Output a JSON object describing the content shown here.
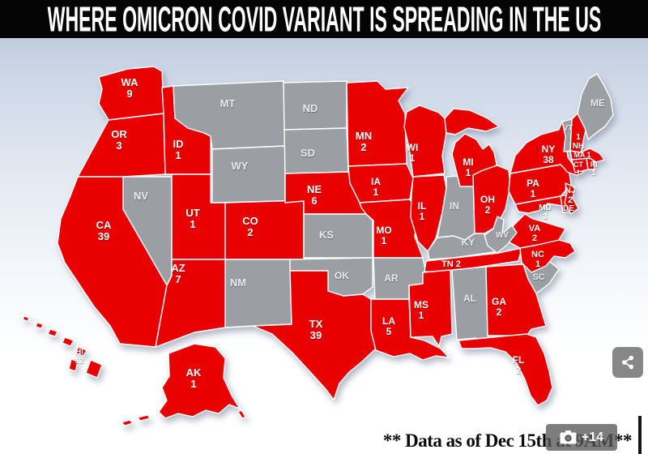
{
  "header": {
    "title": "WHERE OMICRON COVID VARIANT IS SPREADING IN THE US"
  },
  "footer": {
    "note": "** Data as of Dec 15th at 9AM**"
  },
  "overlays": {
    "gallery_count": "+14",
    "camera_icon": "camera-icon",
    "share_icon": "share-icon"
  },
  "map": {
    "colors": {
      "infected": "#e90000",
      "no_cases": "#9b9fa4",
      "border": "#ffffff",
      "label_infected": "#ffffff",
      "label_no_cases": "#e8eaec"
    },
    "states": [
      {
        "abbr": "WA",
        "cases": "9",
        "infected": true
      },
      {
        "abbr": "OR",
        "cases": "3",
        "infected": true
      },
      {
        "abbr": "CA",
        "cases": "39",
        "infected": true
      },
      {
        "abbr": "ID",
        "cases": "1",
        "infected": true
      },
      {
        "abbr": "NV",
        "cases": null,
        "infected": false
      },
      {
        "abbr": "UT",
        "cases": "1",
        "infected": true
      },
      {
        "abbr": "AZ",
        "cases": "7",
        "infected": true
      },
      {
        "abbr": "MT",
        "cases": null,
        "infected": false
      },
      {
        "abbr": "WY",
        "cases": null,
        "infected": false
      },
      {
        "abbr": "CO",
        "cases": "2",
        "infected": true
      },
      {
        "abbr": "NM",
        "cases": null,
        "infected": false
      },
      {
        "abbr": "ND",
        "cases": null,
        "infected": false
      },
      {
        "abbr": "SD",
        "cases": null,
        "infected": false
      },
      {
        "abbr": "NE",
        "cases": "6",
        "infected": true
      },
      {
        "abbr": "KS",
        "cases": null,
        "infected": false
      },
      {
        "abbr": "OK",
        "cases": null,
        "infected": false
      },
      {
        "abbr": "TX",
        "cases": "39",
        "infected": true
      },
      {
        "abbr": "MN",
        "cases": "2",
        "infected": true
      },
      {
        "abbr": "IA",
        "cases": "1",
        "infected": true
      },
      {
        "abbr": "MO",
        "cases": "1",
        "infected": true
      },
      {
        "abbr": "AR",
        "cases": null,
        "infected": false
      },
      {
        "abbr": "LA",
        "cases": "5",
        "infected": true
      },
      {
        "abbr": "WI",
        "cases": "1",
        "infected": true
      },
      {
        "abbr": "IL",
        "cases": "1",
        "infected": true
      },
      {
        "abbr": "IN",
        "cases": null,
        "infected": false
      },
      {
        "abbr": "MI",
        "cases": "1",
        "infected": true
      },
      {
        "abbr": "OH",
        "cases": "2",
        "infected": true
      },
      {
        "abbr": "KY",
        "cases": null,
        "infected": false
      },
      {
        "abbr": "TN",
        "cases": "2",
        "infected": true
      },
      {
        "abbr": "MS",
        "cases": "1",
        "infected": true
      },
      {
        "abbr": "AL",
        "cases": null,
        "infected": false
      },
      {
        "abbr": "GA",
        "cases": "2",
        "infected": true
      },
      {
        "abbr": "FL",
        "cases": "2",
        "infected": true
      },
      {
        "abbr": "SC",
        "cases": null,
        "infected": false
      },
      {
        "abbr": "NC",
        "cases": "1",
        "infected": true
      },
      {
        "abbr": "VA",
        "cases": "2",
        "infected": true
      },
      {
        "abbr": "WV",
        "cases": null,
        "infected": false
      },
      {
        "abbr": "MD",
        "cases": "3",
        "infected": true
      },
      {
        "abbr": "DE",
        "cases": null,
        "infected": true
      },
      {
        "abbr": "PA",
        "cases": "1",
        "infected": true
      },
      {
        "abbr": "NJ",
        "cases": "2",
        "infected": true
      },
      {
        "abbr": "NY",
        "cases": "38",
        "infected": true
      },
      {
        "abbr": "CT",
        "cases": "1",
        "infected": true
      },
      {
        "abbr": "RI",
        "cases": "1",
        "infected": true
      },
      {
        "abbr": "MA",
        "cases": "1",
        "infected": true
      },
      {
        "abbr": "VT",
        "cases": null,
        "infected": false
      },
      {
        "abbr": "NH",
        "cases": "1",
        "infected": true
      },
      {
        "abbr": "ME",
        "cases": null,
        "infected": false
      },
      {
        "abbr": "AK",
        "cases": "1",
        "infected": true
      },
      {
        "abbr": "HI",
        "cases": "12",
        "infected": true
      }
    ]
  }
}
